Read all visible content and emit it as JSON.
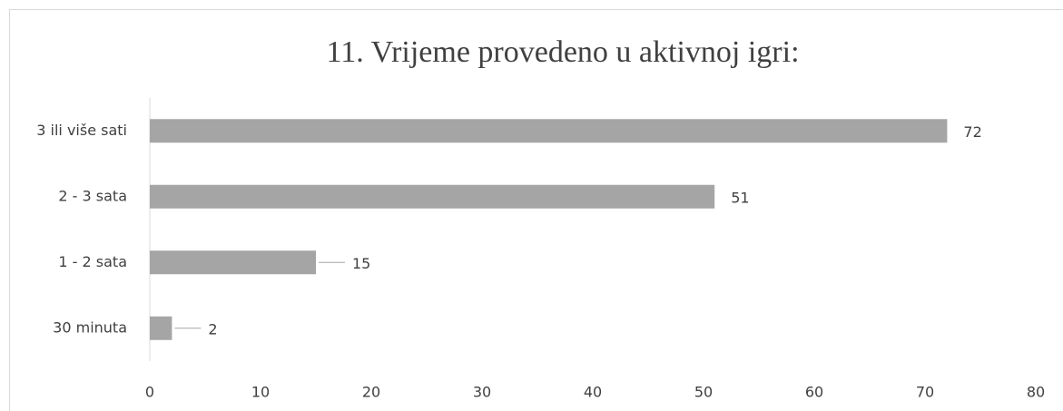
{
  "chart_data": {
    "type": "hbar",
    "title": "11. Vrijeme provedeno u aktivnoj igri:",
    "categories": [
      "3 ili više sati",
      "2 - 3 sata",
      "1 - 2 sata",
      "30 minuta"
    ],
    "values": [
      72,
      51,
      15,
      2
    ],
    "color": "#a5a5a5",
    "xlim": [
      0,
      80
    ],
    "xticks": [
      0,
      10,
      20,
      30,
      40,
      50,
      60,
      70,
      80
    ],
    "grid": false
  }
}
